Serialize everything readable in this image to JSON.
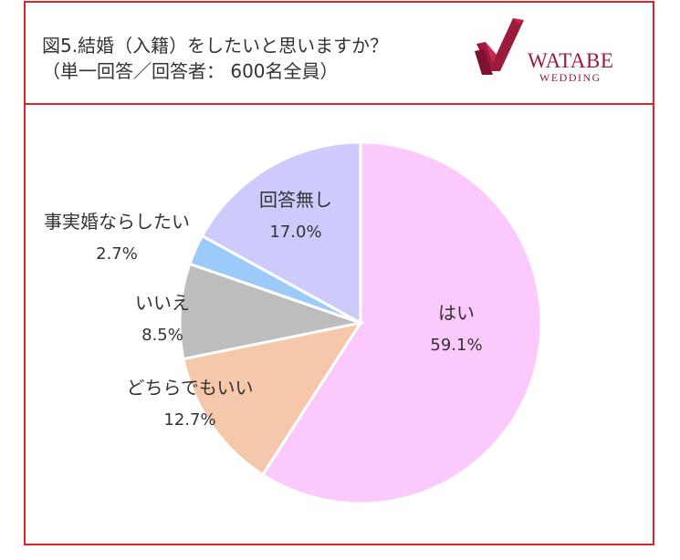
{
  "header": {
    "title": "図5.結婚（入籍）をしたいと思いますか？",
    "subtitle": "（単一回答／回答者： 600名全員）",
    "logo_brand": "WATABE",
    "logo_sub": "WEDDING",
    "brand_color": "#9c1a3c",
    "frame_color": "#d9262b"
  },
  "chart_data": {
    "type": "pie",
    "slices": [
      {
        "label": "はい",
        "value": 59.1,
        "value_label": "59.1%",
        "color": "#fbc9fb"
      },
      {
        "label": "どちらでもいい",
        "value": 12.7,
        "value_label": "12.7%",
        "color": "#f5c8ac"
      },
      {
        "label": "いいえ",
        "value": 8.5,
        "value_label": "8.5%",
        "color": "#bdbdbd"
      },
      {
        "label": "事実婚ならしたい",
        "value": 2.7,
        "value_label": "2.7%",
        "color": "#9ccbfb"
      },
      {
        "label": "回答無し",
        "value": 17.0,
        "value_label": "17.0%",
        "color": "#cccbfb"
      }
    ],
    "start_angle_deg": 0,
    "direction": "clockwise",
    "legend": "none"
  }
}
